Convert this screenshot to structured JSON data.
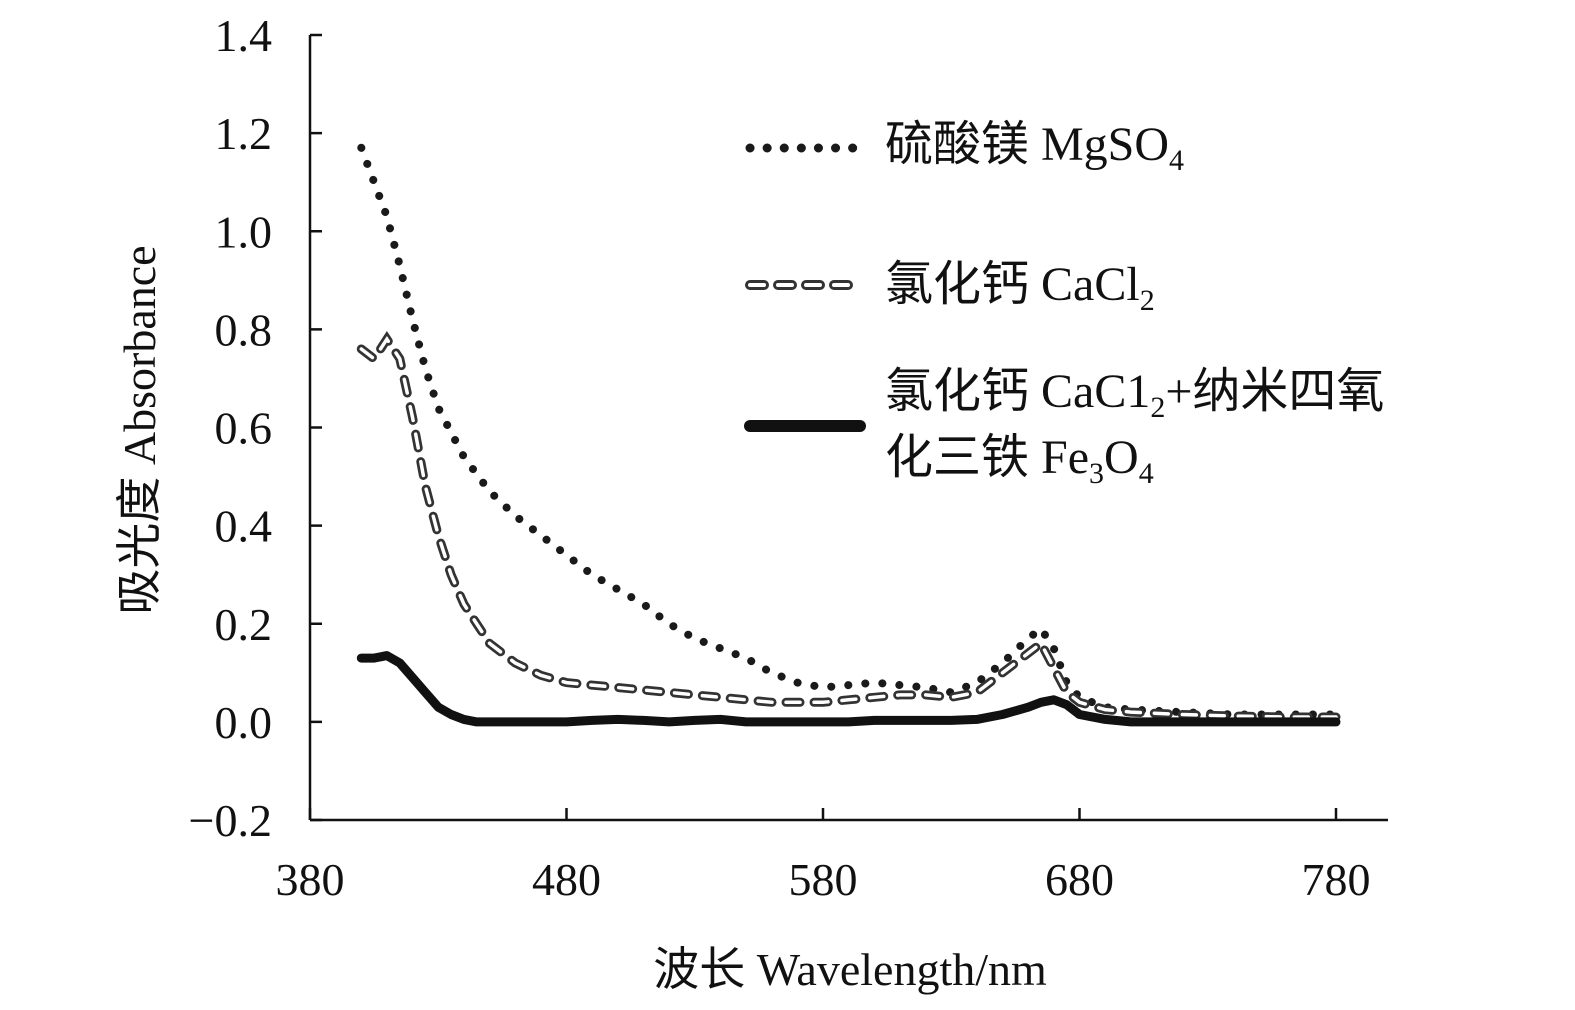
{
  "chart_data": {
    "type": "line",
    "title": "",
    "xlabel": "波长 Wavelength/nm",
    "ylabel": "吸光度 Absorbance",
    "xlim": [
      380,
      780
    ],
    "ylim": [
      -0.2,
      1.4
    ],
    "xticks": [
      "380",
      "480",
      "580",
      "680",
      "780"
    ],
    "yticks": [
      "−0.2",
      "0.0",
      "0.2",
      "0.4",
      "0.6",
      "0.8",
      "1.0",
      "1.2",
      "1.4"
    ],
    "grid": false,
    "legend_position": "top-right",
    "series": [
      {
        "name": "硫酸镁 MgSO4",
        "name_parts": {
          "main": "硫酸镁 MgSO",
          "sub": "4",
          "line2": "",
          "line2_main": "",
          "line2_sub": "",
          "line2_tail": ""
        },
        "style": "dotted",
        "color": "#1a1a1a",
        "x": [
          400,
          405,
          410,
          415,
          420,
          425,
          430,
          440,
          450,
          460,
          470,
          480,
          490,
          500,
          510,
          520,
          530,
          540,
          550,
          560,
          570,
          580,
          590,
          600,
          610,
          620,
          630,
          640,
          650,
          660,
          665,
          670,
          675,
          680,
          690,
          700,
          720,
          740,
          760,
          780
        ],
        "y": [
          1.17,
          1.1,
          1.03,
          0.93,
          0.82,
          0.72,
          0.64,
          0.54,
          0.47,
          0.42,
          0.38,
          0.34,
          0.3,
          0.27,
          0.24,
          0.2,
          0.17,
          0.15,
          0.13,
          0.1,
          0.08,
          0.07,
          0.075,
          0.08,
          0.075,
          0.07,
          0.06,
          0.08,
          0.12,
          0.17,
          0.19,
          0.15,
          0.08,
          0.05,
          0.03,
          0.025,
          0.02,
          0.015,
          0.015,
          0.015
        ]
      },
      {
        "name": "氯化钙 CaCl2",
        "name_parts": {
          "main": "氯化钙 CaCl",
          "sub": "2",
          "line2": "",
          "line2_main": "",
          "line2_sub": "",
          "line2_tail": ""
        },
        "style": "dashed",
        "color": "#333333",
        "x": [
          400,
          405,
          410,
          415,
          420,
          425,
          430,
          435,
          440,
          445,
          450,
          460,
          470,
          480,
          490,
          500,
          510,
          520,
          530,
          540,
          550,
          560,
          570,
          580,
          590,
          600,
          610,
          620,
          630,
          640,
          650,
          660,
          665,
          670,
          675,
          680,
          690,
          700,
          720,
          740,
          760,
          780
        ],
        "y": [
          0.76,
          0.74,
          0.78,
          0.74,
          0.62,
          0.48,
          0.38,
          0.3,
          0.24,
          0.2,
          0.16,
          0.12,
          0.095,
          0.08,
          0.075,
          0.07,
          0.065,
          0.06,
          0.055,
          0.05,
          0.045,
          0.04,
          0.04,
          0.04,
          0.045,
          0.05,
          0.055,
          0.055,
          0.05,
          0.06,
          0.1,
          0.14,
          0.16,
          0.11,
          0.06,
          0.04,
          0.025,
          0.02,
          0.015,
          0.012,
          0.01,
          0.01
        ]
      },
      {
        "name": "氯化钙 CaC12+纳米四氧化三铁 Fe3O4",
        "name_parts": {
          "main": "氯化钙 CaC1",
          "sub": "2",
          "tail": "+纳米四氧",
          "line2_main": "化三铁 Fe",
          "line2_sub": "3",
          "line2_mid": "O",
          "line2_sub2": "4"
        },
        "style": "solid",
        "color": "#111111",
        "x": [
          400,
          405,
          410,
          415,
          420,
          425,
          430,
          435,
          440,
          445,
          450,
          460,
          470,
          480,
          490,
          500,
          510,
          520,
          530,
          540,
          550,
          560,
          570,
          580,
          590,
          600,
          610,
          620,
          630,
          640,
          650,
          660,
          665,
          670,
          675,
          680,
          690,
          700,
          720,
          740,
          760,
          780
        ],
        "y": [
          0.13,
          0.13,
          0.135,
          0.12,
          0.09,
          0.06,
          0.03,
          0.015,
          0.005,
          0.0,
          0.0,
          0.0,
          0.0,
          0.0,
          0.003,
          0.005,
          0.003,
          0.0,
          0.003,
          0.005,
          0.0,
          0.0,
          0.0,
          0.0,
          0.0,
          0.003,
          0.003,
          0.003,
          0.003,
          0.005,
          0.015,
          0.03,
          0.04,
          0.045,
          0.035,
          0.015,
          0.005,
          0.0,
          0.0,
          0.0,
          0.0,
          0.0
        ]
      }
    ]
  }
}
